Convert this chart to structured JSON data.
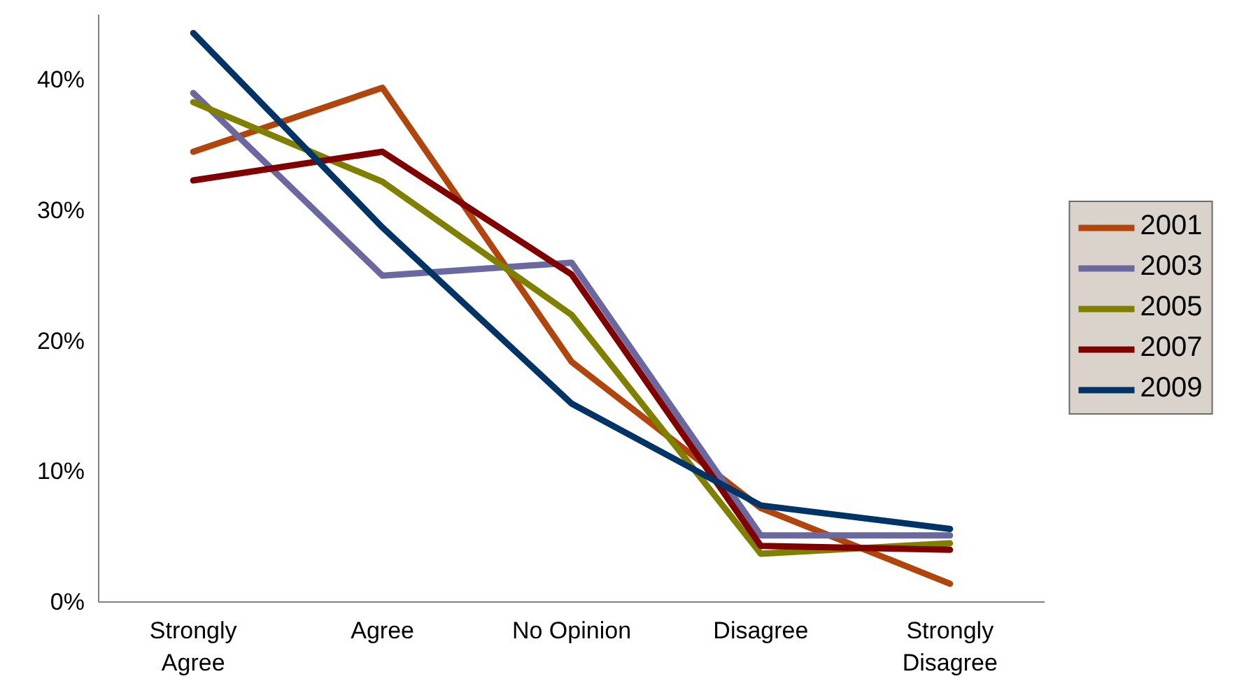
{
  "chart_data": {
    "type": "line",
    "categories": [
      "Strongly Agree",
      "Agree",
      "No Opinion",
      "Disagree",
      "Strongly Disagree"
    ],
    "series": [
      {
        "name": "2001",
        "color": "#b0450e",
        "values": [
          34.5,
          39.4,
          18.4,
          7.2,
          1.4
        ]
      },
      {
        "name": "2003",
        "color": "#6b68a0",
        "values": [
          39.0,
          25.0,
          26.0,
          5.1,
          5.1
        ]
      },
      {
        "name": "2005",
        "color": "#808000",
        "values": [
          38.3,
          32.2,
          22.0,
          3.7,
          4.5
        ]
      },
      {
        "name": "2007",
        "color": "#800000",
        "values": [
          32.3,
          34.5,
          25.1,
          4.3,
          4.0
        ]
      },
      {
        "name": "2009",
        "color": "#003366",
        "values": [
          43.6,
          28.7,
          15.2,
          7.4,
          5.6
        ]
      }
    ],
    "ylim": [
      0,
      45
    ],
    "yticks": [
      {
        "value": 0,
        "label": "0%"
      },
      {
        "value": 10,
        "label": "10%"
      },
      {
        "value": 20,
        "label": "20%"
      },
      {
        "value": 30,
        "label": "30%"
      },
      {
        "value": 40,
        "label": "40%"
      }
    ],
    "grid": false,
    "legend": "right",
    "marker": "none",
    "line_style": "solid"
  }
}
